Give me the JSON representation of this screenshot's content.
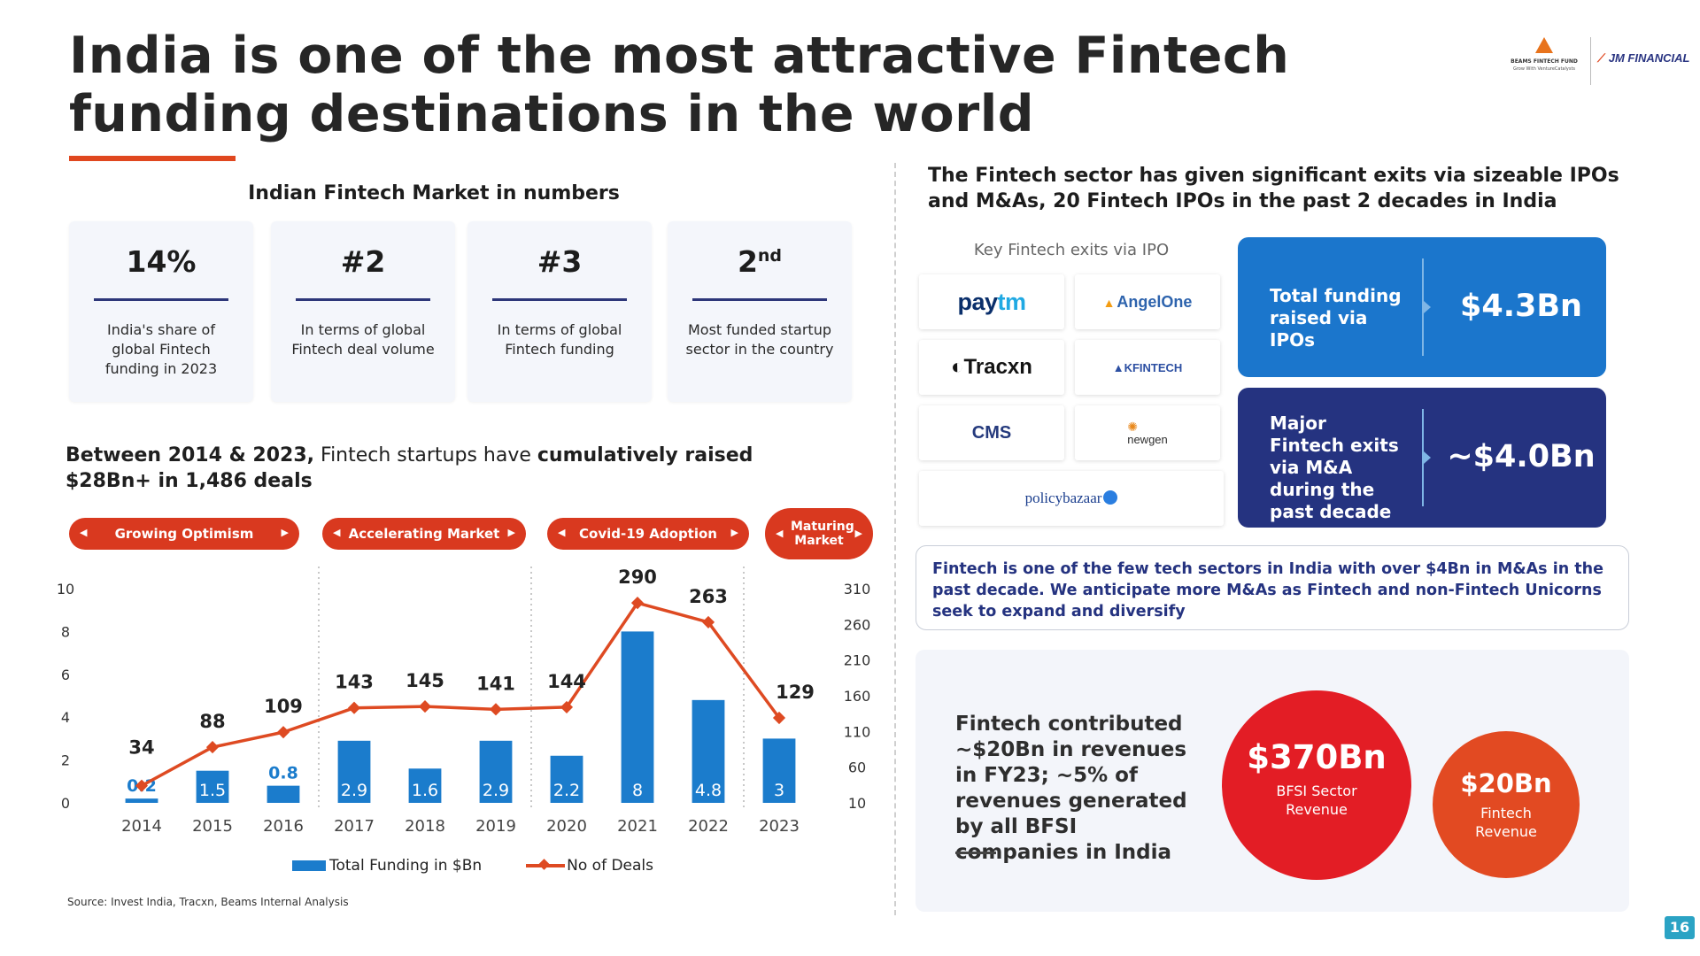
{
  "title": "India is one of the most attractive Fintech funding destinations in the world",
  "logos": {
    "beams_name": "BEAMS FINTECH FUND",
    "beams_tagline": "Grow With VentureCatalysts",
    "jm_name": "JM FINANCIAL"
  },
  "market": {
    "heading": "Indian Fintech Market in numbers",
    "stats": [
      {
        "value": "14%",
        "desc": "India's share of global Fintech funding in 2023"
      },
      {
        "value": "#2",
        "desc": "In terms of global Fintech deal volume"
      },
      {
        "value": "#3",
        "desc": "In terms of global Fintech funding"
      },
      {
        "value": "2",
        "value_sup": "nd",
        "desc": "Most funded startup sector in the country"
      }
    ]
  },
  "raised": {
    "bold_lead": "Between 2014 & 2023,",
    "middle": " Fintech startups have ",
    "bold_tail": "cumulatively raised $28Bn+ in 1,486 deals"
  },
  "phases": [
    {
      "label": "Growing Optimism"
    },
    {
      "label": "Accelerating Market"
    },
    {
      "label": "Covid-19 Adoption"
    },
    {
      "label": "Maturing Market"
    }
  ],
  "chart_data": {
    "type": "bar",
    "categories": [
      "2014",
      "2015",
      "2016",
      "2017",
      "2018",
      "2019",
      "2020",
      "2021",
      "2022",
      "2023"
    ],
    "series": [
      {
        "name": "Total Funding in $Bn",
        "type": "bar",
        "axis": "left",
        "color": "#1b7ccc",
        "values": [
          0.2,
          1.5,
          0.8,
          2.9,
          1.6,
          2.9,
          2.2,
          8,
          4.8,
          3
        ]
      },
      {
        "name": "No of Deals",
        "type": "line",
        "axis": "right",
        "color": "#de4a22",
        "values": [
          34,
          88,
          109,
          143,
          145,
          141,
          144,
          290,
          263,
          129
        ]
      }
    ],
    "y_left": {
      "ticks": [
        "0",
        "2",
        "4",
        "6",
        "8",
        "10"
      ],
      "min": 0,
      "max": 10
    },
    "y_right": {
      "ticks": [
        "10",
        "60",
        "110",
        "160",
        "210",
        "260",
        "310"
      ],
      "min": 10,
      "max": 310
    },
    "legend": "bottom"
  },
  "source": "Source: Invest India, Tracxn, Beams Internal Analysis",
  "exits": {
    "heading": "The Fintech sector has given significant exits via sizeable IPOs and M&As, 20 Fintech IPOs in the past 2 decades in India",
    "ipo_label": "Key Fintech exits via IPO",
    "logos": {
      "paytm_a": "pay",
      "paytm_b": "tm",
      "angel": "AngelOne",
      "tracxn": "Tracxn",
      "kfin": "KFINTECH",
      "cms": "CMS",
      "newgen": "newgen",
      "policybazaar": "policybazaar"
    },
    "ipo_card": {
      "label": "Total funding raised via IPOs",
      "value": "$4.3Bn"
    },
    "ma_card": {
      "label": "Major Fintech exits via M&A during the past decade",
      "value": "~$4.0Bn"
    },
    "note": "Fintech is one of the few tech sectors in India with over $4Bn in M&As in the past decade. We anticipate more M&As as Fintech and non-Fintech Unicorns seek to expand and diversify"
  },
  "revenue": {
    "text": "Fintech contributed ~$20Bn in revenues in FY23;  ~5% of revenues generated by all BFSI companies in India",
    "bfsi_value": "$370Bn",
    "bfsi_label": "BFSI Sector Revenue",
    "fintech_value": "$20Bn",
    "fintech_label": "Fintech Revenue"
  },
  "page_number": "16"
}
